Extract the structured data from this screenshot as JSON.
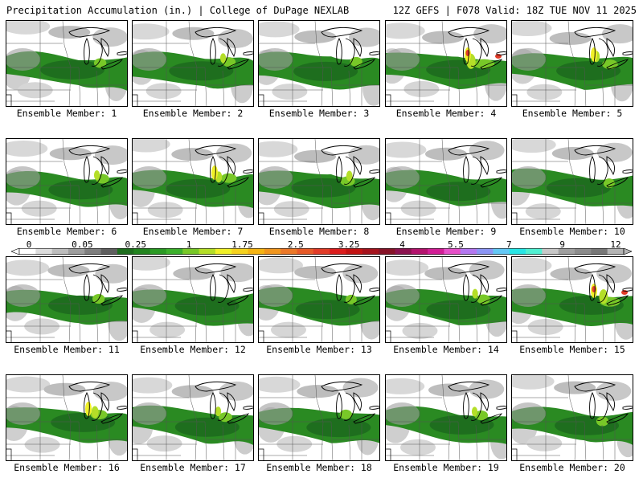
{
  "header": {
    "left": "Precipitation Accumulation (in.) | College of DuPage NEXLAB",
    "right": "12Z GEFS | F078 Valid: 18Z TUE NOV 11 2025"
  },
  "colorbar": {
    "labels": [
      "0",
      "0.05",
      "0.25",
      "1",
      "1.75",
      "2.5",
      "3.25",
      "4",
      "5.5",
      "7",
      "9",
      "12"
    ],
    "colors": [
      "#ffffff",
      "#dcdcdc",
      "#bdbdbd",
      "#9e9e9e",
      "#7f7f7f",
      "#5f5f5f",
      "#1e6e1e",
      "#22841f",
      "#2a9a24",
      "#3cb02c",
      "#78c828",
      "#b4de28",
      "#f0f028",
      "#f5d21e",
      "#f5b414",
      "#f0961e",
      "#eb7828",
      "#e65a28",
      "#e13c28",
      "#dc1e1e",
      "#c31414",
      "#a5141e",
      "#871428",
      "#8c1450",
      "#b4146e",
      "#d21e96",
      "#e650c8",
      "#b478f0",
      "#8c96f5",
      "#64c8f5",
      "#28e6e6",
      "#50f0d2",
      "#c8c8c8",
      "#a0a0a0",
      "#8c8c8c",
      "#787878",
      "#b4b4b4"
    ]
  },
  "members": [
    {
      "caption": "Ensemble Member: 1",
      "intensity": 0.55
    },
    {
      "caption": "Ensemble Member: 2",
      "intensity": 0.6
    },
    {
      "caption": "Ensemble Member: 3",
      "intensity": 0.55
    },
    {
      "caption": "Ensemble Member: 4",
      "intensity": 0.95
    },
    {
      "caption": "Ensemble Member: 5",
      "intensity": 0.7
    },
    {
      "caption": "Ensemble Member: 6",
      "intensity": 0.6
    },
    {
      "caption": "Ensemble Member: 7",
      "intensity": 0.7
    },
    {
      "caption": "Ensemble Member: 8",
      "intensity": 0.65
    },
    {
      "caption": "Ensemble Member: 9",
      "intensity": 0.45
    },
    {
      "caption": "Ensemble Member: 10",
      "intensity": 0.5
    },
    {
      "caption": "Ensemble Member: 11",
      "intensity": 0.55
    },
    {
      "caption": "Ensemble Member: 12",
      "intensity": 0.45
    },
    {
      "caption": "Ensemble Member: 13",
      "intensity": 0.5
    },
    {
      "caption": "Ensemble Member: 14",
      "intensity": 0.6
    },
    {
      "caption": "Ensemble Member: 15",
      "intensity": 0.9
    },
    {
      "caption": "Ensemble Member: 16",
      "intensity": 0.75
    },
    {
      "caption": "Ensemble Member: 17",
      "intensity": 0.6
    },
    {
      "caption": "Ensemble Member: 18",
      "intensity": 0.55
    },
    {
      "caption": "Ensemble Member: 19",
      "intensity": 0.6
    },
    {
      "caption": "Ensemble Member: 20",
      "intensity": 0.55
    }
  ]
}
